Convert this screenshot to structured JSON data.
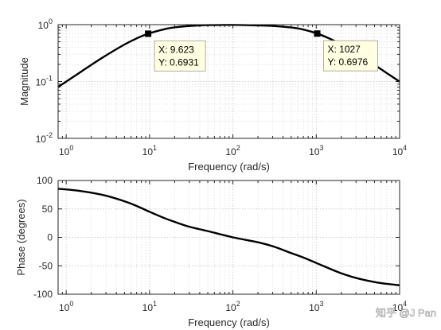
{
  "chart_data": [
    {
      "type": "line",
      "xscale": "log",
      "yscale": "log",
      "xlim": [
        0.8,
        10000
      ],
      "ylim": [
        0.01,
        1
      ],
      "grid": true,
      "xlabel": "Frequency (rad/s)",
      "ylabel": "Magnitude",
      "xticks": [
        {
          "base": "10",
          "exp": "0",
          "value": 1
        },
        {
          "base": "10",
          "exp": "1",
          "value": 10
        },
        {
          "base": "10",
          "exp": "2",
          "value": 100
        },
        {
          "base": "10",
          "exp": "3",
          "value": 1000
        },
        {
          "base": "10",
          "exp": "4",
          "value": 10000
        }
      ],
      "yticks": [
        {
          "base": "10",
          "exp": "0",
          "value": 1
        },
        {
          "base": "10",
          "exp": "-1",
          "value": 0.1
        },
        {
          "base": "10",
          "exp": "-2",
          "value": 0.01
        }
      ],
      "x": [
        0.8,
        1,
        1.5,
        2,
        3,
        5,
        7,
        9.623,
        15,
        20,
        30,
        50,
        100,
        200,
        300,
        500,
        700,
        1027,
        1500,
        2000,
        3000,
        5000,
        7000,
        10000
      ],
      "y": [
        0.08,
        0.0995,
        0.148,
        0.196,
        0.287,
        0.447,
        0.573,
        0.6931,
        0.83,
        0.894,
        0.949,
        0.981,
        0.99,
        0.97,
        0.95,
        0.89,
        0.82,
        0.6976,
        0.555,
        0.447,
        0.316,
        0.196,
        0.141,
        0.0995
      ],
      "datatips": [
        {
          "x": 9.623,
          "y": 0.6931,
          "x_text": "X: 9.623",
          "y_text": "Y: 0.6931"
        },
        {
          "x": 1027,
          "y": 0.6976,
          "x_text": "X: 1027",
          "y_text": "Y: 0.6976"
        }
      ]
    },
    {
      "type": "line",
      "xscale": "log",
      "yscale": "linear",
      "xlim": [
        0.8,
        10000
      ],
      "ylim": [
        -100,
        100
      ],
      "grid": true,
      "xlabel": "Frequency (rad/s)",
      "ylabel": "Phase (degrees)",
      "xticks": [
        {
          "base": "10",
          "exp": "0",
          "value": 1
        },
        {
          "base": "10",
          "exp": "1",
          "value": 10
        },
        {
          "base": "10",
          "exp": "2",
          "value": 100
        },
        {
          "base": "10",
          "exp": "3",
          "value": 1000
        },
        {
          "base": "10",
          "exp": "4",
          "value": 10000
        }
      ],
      "yticks": [
        {
          "label": "100",
          "value": 100
        },
        {
          "label": "50",
          "value": 50
        },
        {
          "label": "0",
          "value": 0
        },
        {
          "label": "-50",
          "value": -50
        },
        {
          "label": "-100",
          "value": -100
        }
      ],
      "x": [
        0.8,
        1,
        1.5,
        2,
        3,
        5,
        7,
        10,
        15,
        20,
        30,
        50,
        100,
        200,
        300,
        500,
        700,
        1000,
        1500,
        2000,
        3000,
        5000,
        7000,
        10000
      ],
      "y": [
        85.4,
        84.3,
        81.4,
        78.6,
        73.3,
        63.5,
        55.3,
        45.0,
        34.0,
        27.2,
        18.7,
        11.0,
        0.0,
        -8.6,
        -15.6,
        -27.6,
        -35.5,
        -45.0,
        -56.0,
        -63.3,
        -71.4,
        -78.6,
        -81.8,
        -84.3
      ]
    }
  ],
  "watermark": "知乎 @J Pan"
}
